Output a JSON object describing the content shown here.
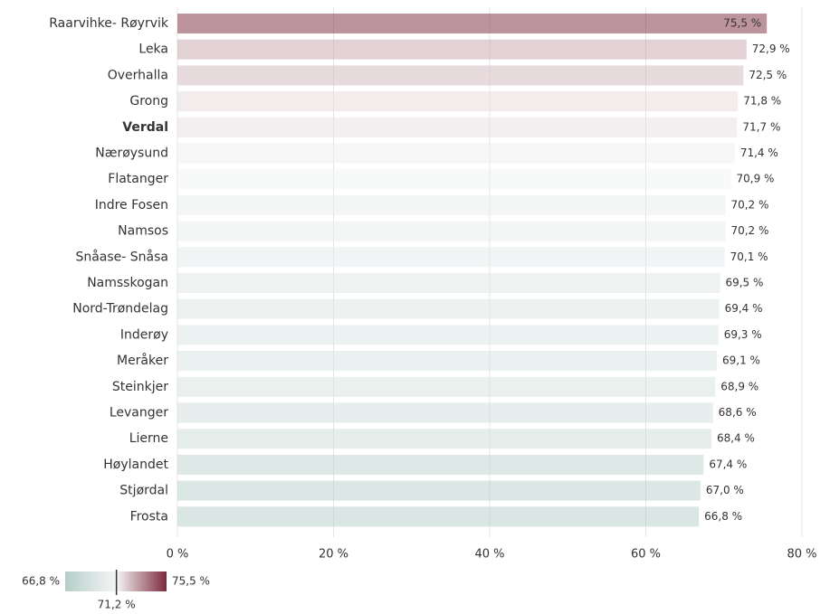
{
  "chart_data": {
    "type": "barh",
    "categories": [
      "Raarvihke- Røyrvik",
      "Leka",
      "Overhalla",
      "Grong",
      "Verdal",
      "Nærøysund",
      "Flatanger",
      "Indre Fosen",
      "Namsos",
      "Snåase- Snåsa",
      "Namsskogan",
      "Nord-Trøndelag",
      "Inderøy",
      "Meråker",
      "Steinkjer",
      "Levanger",
      "Lierne",
      "Høylandet",
      "Stjørdal",
      "Frosta"
    ],
    "values": [
      75.5,
      72.9,
      72.5,
      71.8,
      71.7,
      71.4,
      70.9,
      70.2,
      70.2,
      70.1,
      69.5,
      69.4,
      69.3,
      69.1,
      68.9,
      68.6,
      68.4,
      67.4,
      67.0,
      66.8
    ],
    "value_labels": [
      "75,5 %",
      "72,9 %",
      "72,5 %",
      "71,8 %",
      "71,7 %",
      "71,4 %",
      "70,9 %",
      "70,2 %",
      "70,2 %",
      "70,1 %",
      "69,5 %",
      "69,4 %",
      "69,3 %",
      "69,1 %",
      "68,9 %",
      "68,6 %",
      "68,4 %",
      "67,4 %",
      "67,0 %",
      "66,8 %"
    ],
    "highlight": "Verdal",
    "xlim": [
      0,
      80
    ],
    "xticks": [
      {
        "value": 0,
        "label": "0 %"
      },
      {
        "value": 20,
        "label": "20 %"
      },
      {
        "value": 40,
        "label": "40 %"
      },
      {
        "value": 60,
        "label": "60 %"
      },
      {
        "value": 80,
        "label": "80 %"
      }
    ],
    "grid": true,
    "colorscale": {
      "min": {
        "value": 66.8,
        "label": "66,8 %",
        "color": "#b5cec9"
      },
      "mid": {
        "value": 71.2,
        "label": "71,2 %",
        "color": "#f6f6f6"
      },
      "max": {
        "value": 75.5,
        "label": "75,5 %",
        "color": "#7b2a3c"
      }
    }
  }
}
